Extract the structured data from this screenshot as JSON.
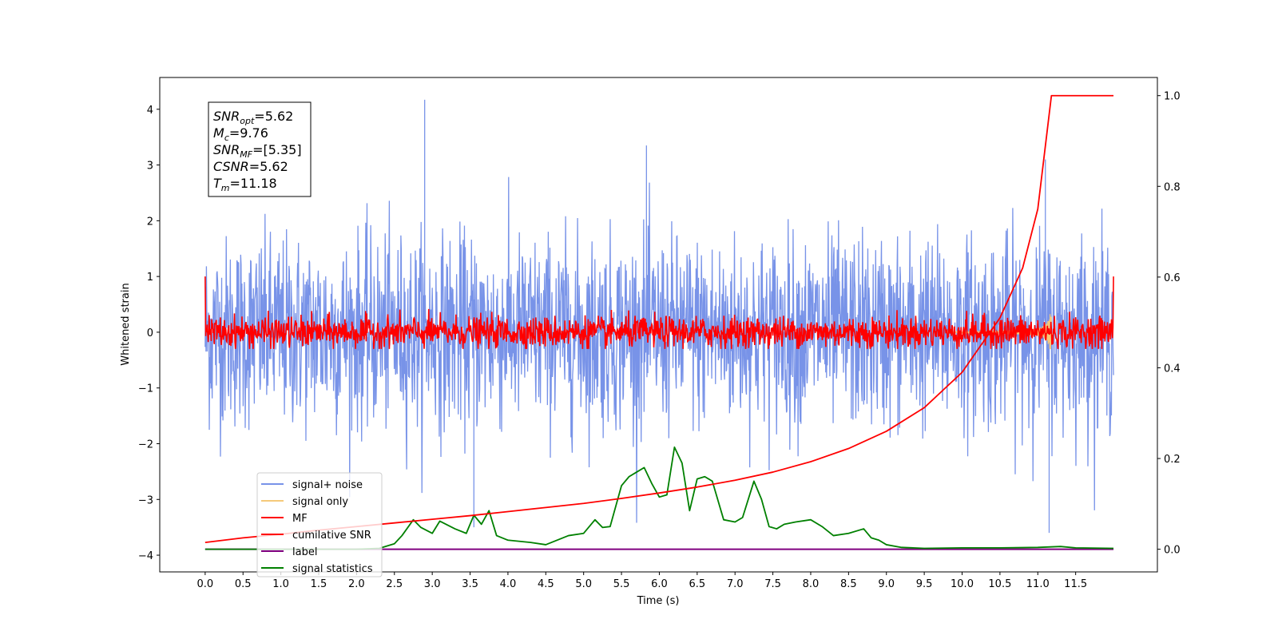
{
  "chart_data": {
    "type": "line",
    "xlabel": "Time (s)",
    "ylabel_left": "Whitened strain",
    "xlim": [
      -0.6,
      12.58
    ],
    "ylim_left": [
      -4.3,
      4.57
    ],
    "ylim_right": [
      -0.05,
      1.04
    ],
    "x_ticks": [
      0.0,
      0.5,
      1.0,
      1.5,
      2.0,
      2.5,
      3.0,
      3.5,
      4.0,
      4.5,
      5.0,
      5.5,
      6.0,
      6.5,
      7.0,
      7.5,
      8.0,
      8.5,
      9.0,
      9.5,
      10.0,
      10.5,
      11.0,
      11.5
    ],
    "y_ticks_left": [
      -4,
      -3,
      -2,
      -1,
      0,
      1,
      2,
      3,
      4
    ],
    "y_ticks_right": [
      0.0,
      0.2,
      0.4,
      0.6,
      0.8,
      1.0
    ],
    "grid": false,
    "legend_position": "lower-left",
    "annotation": [
      {
        "base": "SNR",
        "sub": "opt",
        "value": "=5.62"
      },
      {
        "base": "M",
        "sub": "c",
        "value": "=9.76"
      },
      {
        "base": "SNR",
        "sub": "MF",
        "value": "=[5.35]"
      },
      {
        "base": "CSNR",
        "sub": "",
        "value": "=5.62"
      },
      {
        "base": "T",
        "sub": "m",
        "value": "=11.18"
      }
    ],
    "series": [
      {
        "name": "signal+ noise",
        "color": "#7893e8",
        "axis": "left",
        "noise_std": 0.85,
        "peak_max": 4.17,
        "peak_min": -3.6
      },
      {
        "name": "signal only",
        "color": "#f5c97a",
        "axis": "left",
        "chirp_peak_time": 11.18,
        "chirp_peak_amplitude": 0.6
      },
      {
        "name": "MF",
        "color": "#ff0000",
        "axis": "left",
        "noise_std": 0.14,
        "range": [
          -0.3,
          0.75
        ]
      },
      {
        "name": "cumilative SNR",
        "color": "#ff0000",
        "axis": "right",
        "x": [
          0.0,
          0.5,
          1.0,
          1.5,
          2.0,
          2.5,
          3.0,
          3.5,
          4.0,
          4.5,
          5.0,
          5.5,
          6.0,
          6.5,
          7.0,
          7.5,
          8.0,
          8.5,
          9.0,
          9.5,
          10.0,
          10.5,
          10.8,
          11.0,
          11.18,
          12.0
        ],
        "y": [
          0.015,
          0.025,
          0.033,
          0.042,
          0.05,
          0.058,
          0.066,
          0.074,
          0.083,
          0.092,
          0.101,
          0.112,
          0.124,
          0.137,
          0.152,
          0.17,
          0.193,
          0.222,
          0.26,
          0.312,
          0.39,
          0.51,
          0.62,
          0.75,
          1.0,
          1.0
        ]
      },
      {
        "name": "label",
        "color": "#800080",
        "axis": "right",
        "x": [
          0.0,
          12.0
        ],
        "y": [
          0.0,
          0.0
        ]
      },
      {
        "name": "signal statistics",
        "color": "#008000",
        "axis": "right",
        "x": [
          0.0,
          0.5,
          1.0,
          1.5,
          2.0,
          2.3,
          2.5,
          2.6,
          2.75,
          2.85,
          3.0,
          3.1,
          3.3,
          3.45,
          3.55,
          3.65,
          3.75,
          3.85,
          4.0,
          4.3,
          4.5,
          4.8,
          5.0,
          5.15,
          5.25,
          5.35,
          5.5,
          5.6,
          5.7,
          5.8,
          5.9,
          6.0,
          6.1,
          6.2,
          6.3,
          6.4,
          6.5,
          6.6,
          6.7,
          6.85,
          7.0,
          7.1,
          7.25,
          7.35,
          7.45,
          7.55,
          7.65,
          7.8,
          8.0,
          8.15,
          8.3,
          8.5,
          8.7,
          8.8,
          8.9,
          9.0,
          9.2,
          9.5,
          10.0,
          10.5,
          11.0,
          11.3,
          11.5,
          12.0
        ],
        "y": [
          0.0,
          0.0,
          0.0,
          0.0,
          0.0,
          0.002,
          0.012,
          0.03,
          0.065,
          0.048,
          0.035,
          0.062,
          0.045,
          0.035,
          0.075,
          0.055,
          0.085,
          0.03,
          0.02,
          0.015,
          0.01,
          0.03,
          0.035,
          0.065,
          0.048,
          0.05,
          0.14,
          0.16,
          0.17,
          0.18,
          0.145,
          0.115,
          0.12,
          0.225,
          0.19,
          0.085,
          0.155,
          0.16,
          0.15,
          0.065,
          0.06,
          0.07,
          0.15,
          0.11,
          0.05,
          0.045,
          0.055,
          0.06,
          0.065,
          0.05,
          0.03,
          0.035,
          0.045,
          0.025,
          0.02,
          0.01,
          0.004,
          0.002,
          0.003,
          0.003,
          0.004,
          0.006,
          0.003,
          0.002
        ]
      }
    ]
  }
}
